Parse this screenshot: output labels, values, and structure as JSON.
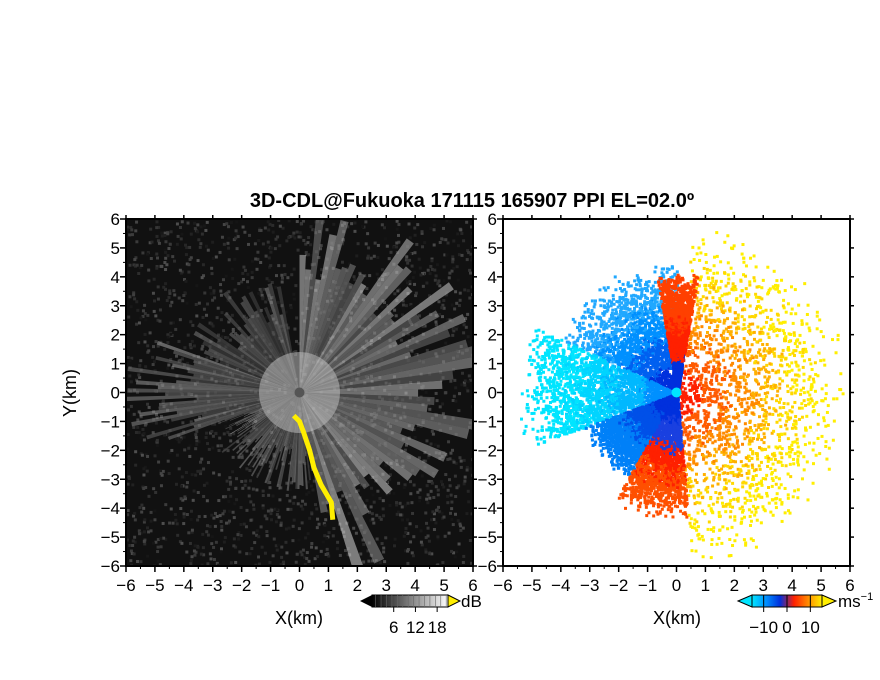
{
  "title": "3D-CDL@Fukuoka 171115 165907 PPI EL=02.0º",
  "chart_data": [
    {
      "type": "heatmap",
      "name": "backscatter-intensity-ppi",
      "xlabel": "X(km)",
      "ylabel": "Y(km)",
      "xlim": [
        -6,
        6
      ],
      "ylim": [
        -6,
        6
      ],
      "xticks": [
        -6,
        -5,
        -4,
        -3,
        -2,
        -1,
        0,
        1,
        2,
        3,
        4,
        5,
        6
      ],
      "yticks": [
        -6,
        -5,
        -4,
        -3,
        -2,
        -1,
        0,
        1,
        2,
        3,
        4,
        5,
        6
      ],
      "xtick_labels": [
        "−6",
        "−5",
        "−4",
        "−3",
        "−2",
        "−1",
        "0",
        "1",
        "2",
        "3",
        "4",
        "5",
        "6"
      ],
      "ytick_labels": [
        "−6",
        "−5",
        "−4",
        "−3",
        "−2",
        "−1",
        "0",
        "1",
        "2",
        "3",
        "4",
        "5",
        "6"
      ],
      "colorbar": {
        "unit": "dB",
        "ticks": [
          6,
          12,
          18
        ],
        "range": [
          0,
          21
        ],
        "colors": [
          "#000000",
          "#ffffff"
        ],
        "over_color": "#ffee00"
      },
      "background": "#111111",
      "highlight_color": "#ffee00",
      "highlight_track": [
        [
          -0.2,
          -0.8
        ],
        [
          0,
          -1
        ],
        [
          0.15,
          -1.4
        ],
        [
          0.35,
          -2
        ],
        [
          0.5,
          -2.6
        ],
        [
          0.75,
          -3.2
        ],
        [
          1.1,
          -3.8
        ],
        [
          1.15,
          -4.4
        ]
      ]
    },
    {
      "type": "heatmap",
      "name": "doppler-velocity-ppi",
      "xlabel": "X(km)",
      "ylabel": "",
      "xlim": [
        -6,
        6
      ],
      "ylim": [
        -6,
        6
      ],
      "xticks": [
        -6,
        -5,
        -4,
        -3,
        -2,
        -1,
        0,
        1,
        2,
        3,
        4,
        5,
        6
      ],
      "yticks": [
        -6,
        -5,
        -4,
        -3,
        -2,
        -1,
        0,
        1,
        2,
        3,
        4,
        5,
        6
      ],
      "xtick_labels": [
        "−6",
        "−5",
        "−4",
        "−3",
        "−2",
        "−1",
        "0",
        "1",
        "2",
        "3",
        "4",
        "5",
        "6"
      ],
      "colorbar": {
        "unit": "ms",
        "unit_sup": "−1",
        "ticks": [
          "−10",
          "0",
          "10"
        ],
        "tick_values": [
          -10,
          0,
          10
        ],
        "range": [
          -15,
          15
        ],
        "colors": [
          "#00e5ff",
          "#0090ff",
          "#0030dd",
          "#ff2000",
          "#ff8a00",
          "#ffee00"
        ]
      },
      "background": "#ffffff"
    }
  ]
}
